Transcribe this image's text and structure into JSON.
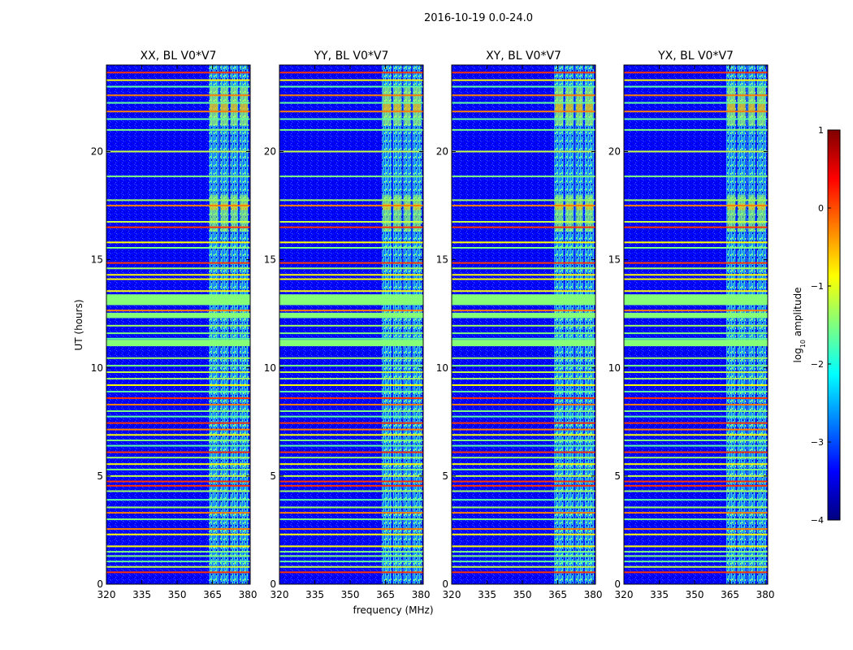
{
  "chart_data": {
    "type": "heatmap",
    "suptitle": "2016-10-19 0.0-24.0",
    "xlabel": "frequency (MHz)",
    "ylabel": "UT (hours)",
    "xlim": [
      320,
      381
    ],
    "ylim": [
      0,
      24
    ],
    "xticks": [
      320,
      335,
      350,
      365,
      380
    ],
    "yticks": [
      0,
      5,
      10,
      15,
      20
    ],
    "panels": [
      {
        "title": "XX, BL V0*V7",
        "rfi_bands_mhz": [
          [
            363.5,
            367.6
          ],
          [
            368.1,
            371.9
          ],
          [
            372.5,
            375.9
          ],
          [
            376.4,
            380.3
          ]
        ]
      },
      {
        "title": "YY, BL V0*V7",
        "rfi_bands_mhz": [
          [
            363.5,
            367.6
          ],
          [
            368.1,
            371.9
          ],
          [
            372.5,
            375.9
          ],
          [
            376.4,
            380.3
          ]
        ]
      },
      {
        "title": "XY, BL V0*V7",
        "rfi_bands_mhz": [
          [
            363.5,
            367.6
          ],
          [
            368.1,
            371.9
          ],
          [
            372.5,
            375.9
          ],
          [
            376.4,
            380.3
          ]
        ]
      },
      {
        "title": "YX, BL V0*V7",
        "rfi_bands_mhz": [
          [
            363.5,
            367.6
          ],
          [
            368.1,
            371.9
          ],
          [
            372.5,
            375.9
          ],
          [
            376.4,
            380.3
          ]
        ]
      }
    ],
    "flagged_ut_hours": [
      0.55,
      0.8,
      1.05,
      1.3,
      1.5,
      1.75,
      2.3,
      2.55,
      3.0,
      3.3,
      3.55,
      3.9,
      4.3,
      4.55,
      4.75,
      5.0,
      5.3,
      5.55,
      5.85,
      6.1,
      6.4,
      6.65,
      6.9,
      7.15,
      7.45,
      7.75,
      8.0,
      8.3,
      8.6,
      8.9,
      9.2,
      9.5,
      9.8,
      10.1,
      10.45,
      11.1,
      11.35,
      11.6,
      11.95,
      12.4,
      12.65,
      13.0,
      13.3,
      13.55,
      14.1,
      14.3,
      14.6,
      14.85,
      15.55,
      15.8,
      16.5,
      16.75,
      17.5,
      17.75,
      18.85,
      20.0,
      21.0,
      21.5,
      21.85,
      22.25,
      22.6,
      23.0,
      23.3,
      23.65
    ],
    "colorbar": {
      "label": "log",
      "label_sub": "10",
      "label_rest": " amplitude",
      "range": [
        -4,
        1
      ],
      "ticks": [
        1,
        0,
        -1,
        -2,
        -3,
        -4
      ],
      "tick_labels": [
        "1",
        "0",
        "−1",
        "−2",
        "−3",
        "−4"
      ],
      "colormap": "jet",
      "colors": [
        "#00007f",
        "#0000ff",
        "#007fff",
        "#00ffff",
        "#7fff7f",
        "#ffff00",
        "#ff7f00",
        "#ff0000",
        "#7f0000"
      ]
    }
  }
}
